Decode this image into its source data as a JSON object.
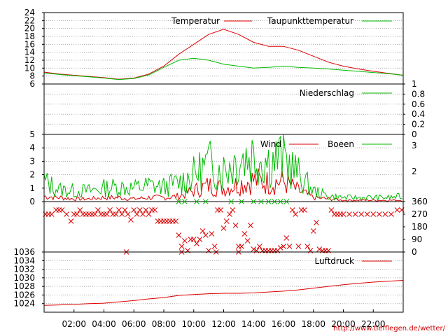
{
  "credit_url": "http://www.tiefflegen.de/wetter/",
  "colors": {
    "red": "#dd0000",
    "green": "#00bb00",
    "grid": "#aaaaaa"
  },
  "chart_data": [
    {
      "type": "line",
      "title": "",
      "legend": [
        "Temperatur",
        "Taupunkttemperatur"
      ],
      "legend_position": "top-right",
      "ylim": [
        6,
        24
      ],
      "yticks": [
        "24",
        "22",
        "20",
        "18",
        "16",
        "14",
        "12",
        "10",
        "8",
        "6"
      ],
      "x_hours": [
        0,
        1,
        2,
        3,
        4,
        5,
        6,
        7,
        8,
        9,
        10,
        11,
        12,
        13,
        14,
        15,
        16,
        17,
        18,
        19,
        20,
        21,
        22,
        23,
        24
      ],
      "series": [
        {
          "name": "Temperatur",
          "color": "#dd0000",
          "values": [
            9.0,
            8.5,
            8.2,
            7.9,
            7.6,
            7.2,
            7.5,
            8.5,
            10.5,
            13.5,
            16.0,
            18.5,
            19.8,
            18.5,
            16.5,
            15.5,
            15.5,
            14.5,
            13.0,
            11.5,
            10.5,
            9.8,
            9.2,
            8.7,
            8.2
          ]
        },
        {
          "name": "Taupunkttemperatur",
          "color": "#00bb00",
          "values": [
            8.8,
            8.4,
            8.1,
            7.8,
            7.5,
            7.1,
            7.4,
            8.3,
            10.2,
            12.0,
            12.5,
            12.0,
            11.0,
            10.5,
            10.0,
            10.2,
            10.5,
            10.2,
            10.0,
            9.8,
            9.5,
            9.2,
            8.9,
            8.6,
            8.2
          ]
        }
      ]
    },
    {
      "type": "line",
      "legend": [
        "Niederschlag"
      ],
      "legend_position": "top-right",
      "ylim": [
        0,
        1
      ],
      "yticks_right": [
        "1",
        "0.8",
        "0.6",
        "0.4",
        "0.2",
        "0"
      ],
      "series": [
        {
          "name": "Niederschlag",
          "color": "#00bb00",
          "values": [
            0
          ]
        }
      ]
    },
    {
      "type": "line",
      "legend": [
        "Wind",
        "Boeen"
      ],
      "legend_position": "top-right",
      "ylim": [
        0,
        5
      ],
      "yticks": [
        "5",
        "4",
        "3",
        "2",
        "1",
        "0"
      ],
      "yticks_right": [
        "3",
        "2"
      ],
      "x_hours": [
        0,
        1,
        2,
        3,
        4,
        5,
        6,
        7,
        8,
        9,
        10,
        11,
        12,
        13,
        14,
        15,
        16,
        17,
        18,
        19,
        20,
        21,
        22,
        23,
        24
      ],
      "series": [
        {
          "name": "Wind",
          "color": "#dd0000",
          "values": [
            0.4,
            0.3,
            0.2,
            0.2,
            0.3,
            0.3,
            0.2,
            0.3,
            0.3,
            0.4,
            0.8,
            1.2,
            1.0,
            1.3,
            1.6,
            1.4,
            1.5,
            0.8,
            0.3,
            0.2,
            0.1,
            0.1,
            0.1,
            0.1,
            0.1
          ]
        },
        {
          "name": "Boeen",
          "color": "#00bb00",
          "values": [
            1.5,
            0.9,
            0.8,
            0.8,
            1.0,
            1.1,
            1.0,
            1.2,
            1.1,
            1.4,
            2.0,
            2.8,
            2.4,
            3.2,
            3.5,
            3.0,
            3.3,
            2.0,
            0.8,
            0.4,
            0.3,
            0.3,
            0.3,
            0.3,
            0.4
          ]
        }
      ]
    },
    {
      "type": "scatter",
      "title": "",
      "ylim": [
        0,
        360
      ],
      "yticks_right": [
        "360",
        "270",
        "180",
        "90",
        "0"
      ],
      "series": [
        {
          "name": "",
          "color": "#dd0000",
          "points": [
            [
              0.1,
              270
            ],
            [
              0.3,
              270
            ],
            [
              0.5,
              270
            ],
            [
              0.8,
              300
            ],
            [
              1,
              300
            ],
            [
              1.2,
              300
            ],
            [
              1.5,
              270
            ],
            [
              1.8,
              220
            ],
            [
              2,
              270
            ],
            [
              2.2,
              270
            ],
            [
              2.4,
              300
            ],
            [
              2.6,
              270
            ],
            [
              2.8,
              270
            ],
            [
              3,
              270
            ],
            [
              3.2,
              270
            ],
            [
              3.4,
              270
            ],
            [
              3.6,
              300
            ],
            [
              3.8,
              270
            ],
            [
              4,
              270
            ],
            [
              4.2,
              270
            ],
            [
              4.4,
              300
            ],
            [
              4.6,
              270
            ],
            [
              4.8,
              270
            ],
            [
              5,
              300
            ],
            [
              5.2,
              270
            ],
            [
              5.4,
              300
            ],
            [
              5.6,
              270
            ],
            [
              5.8,
              230
            ],
            [
              6,
              300
            ],
            [
              6.2,
              270
            ],
            [
              6.4,
              300
            ],
            [
              6.6,
              270
            ],
            [
              6.8,
              300
            ],
            [
              7,
              270
            ],
            [
              7.2,
              300
            ],
            [
              7.4,
              300
            ],
            [
              7.6,
              220
            ],
            [
              7.8,
              220
            ],
            [
              8,
              220
            ],
            [
              8.2,
              220
            ],
            [
              8.4,
              220
            ],
            [
              8.6,
              220
            ],
            [
              8.8,
              220
            ],
            [
              9,
              120
            ],
            [
              9.2,
              40
            ],
            [
              9.4,
              80
            ],
            [
              9.6,
              10
            ],
            [
              9.8,
              90
            ],
            [
              10,
              90
            ],
            [
              10.2,
              60
            ],
            [
              10.4,
              90
            ],
            [
              10.6,
              150
            ],
            [
              10.8,
              120
            ],
            [
              11,
              10
            ],
            [
              11.2,
              130
            ],
            [
              11.4,
              40
            ],
            [
              11.6,
              300
            ],
            [
              11.8,
              300
            ],
            [
              12,
              170
            ],
            [
              12.2,
              220
            ],
            [
              12.4,
              270
            ],
            [
              12.6,
              300
            ],
            [
              12.8,
              190
            ],
            [
              13,
              40
            ],
            [
              13.2,
              40
            ],
            [
              13.4,
              130
            ],
            [
              13.6,
              80
            ],
            [
              13.8,
              190
            ],
            [
              14,
              20
            ],
            [
              14.2,
              10
            ],
            [
              14.4,
              40
            ],
            [
              14.6,
              10
            ],
            [
              14.8,
              10
            ],
            [
              15,
              10
            ],
            [
              15.2,
              10
            ],
            [
              15.4,
              10
            ],
            [
              15.6,
              10
            ],
            [
              15.8,
              30
            ],
            [
              16,
              40
            ],
            [
              16.2,
              100
            ],
            [
              16.4,
              40
            ],
            [
              16.6,
              300
            ],
            [
              16.8,
              270
            ],
            [
              17,
              40
            ],
            [
              17.2,
              300
            ],
            [
              17.4,
              300
            ],
            [
              17.6,
              40
            ],
            [
              17.8,
              10
            ],
            [
              18,
              150
            ],
            [
              18.2,
              210
            ],
            [
              18.4,
              20
            ],
            [
              18.6,
              10
            ],
            [
              18.8,
              10
            ],
            [
              19,
              10
            ],
            [
              19.2,
              300
            ],
            [
              19.4,
              270
            ],
            [
              19.6,
              270
            ],
            [
              19.8,
              270
            ],
            [
              20,
              270
            ],
            [
              20.4,
              270
            ],
            [
              20.8,
              270
            ],
            [
              21.2,
              270
            ],
            [
              21.6,
              270
            ],
            [
              22,
              270
            ],
            [
              22.4,
              270
            ],
            [
              22.8,
              270
            ],
            [
              23.2,
              270
            ],
            [
              23.6,
              300
            ],
            [
              23.9,
              300
            ],
            [
              5.5,
              0
            ],
            [
              9.2,
              0
            ],
            [
              11.5,
              0
            ],
            [
              13,
              0
            ]
          ]
        },
        {
          "name": "",
          "color": "#00bb00",
          "points": [
            [
              9,
              360
            ],
            [
              9.4,
              360
            ],
            [
              10.2,
              360
            ],
            [
              10.8,
              360
            ],
            [
              12.5,
              360
            ],
            [
              13.2,
              360
            ],
            [
              14,
              360
            ],
            [
              14.5,
              360
            ],
            [
              15,
              360
            ],
            [
              15.4,
              360
            ],
            [
              15.8,
              360
            ],
            [
              16.2,
              360
            ]
          ]
        }
      ]
    },
    {
      "type": "line",
      "legend": [
        "Luftdruck"
      ],
      "legend_position": "top-right",
      "ylim": [
        1022,
        1036
      ],
      "yticks": [
        "1036",
        "1034",
        "1032",
        "1030",
        "1028",
        "1026",
        "1024"
      ],
      "x_hours": [
        0,
        1,
        2,
        3,
        4,
        5,
        6,
        7,
        8,
        9,
        10,
        11,
        12,
        13,
        14,
        15,
        16,
        17,
        18,
        19,
        20,
        21,
        22,
        23,
        24
      ],
      "series": [
        {
          "name": "Luftdruck",
          "color": "#dd0000",
          "values": [
            1023.6,
            1023.7,
            1023.8,
            1024.0,
            1024.1,
            1024.4,
            1024.7,
            1025.1,
            1025.4,
            1025.9,
            1026.1,
            1026.3,
            1026.4,
            1026.4,
            1026.5,
            1026.7,
            1026.9,
            1027.2,
            1027.6,
            1028.0,
            1028.4,
            1028.7,
            1029.0,
            1029.2,
            1029.4
          ]
        }
      ]
    }
  ],
  "x_axis": {
    "labels": [
      "02:00",
      "04:00",
      "06:00",
      "08:00",
      "10:00",
      "12:00",
      "14:00",
      "16:00",
      "18:00",
      "20:00",
      "22:00"
    ],
    "range_hours": [
      0,
      24
    ]
  }
}
